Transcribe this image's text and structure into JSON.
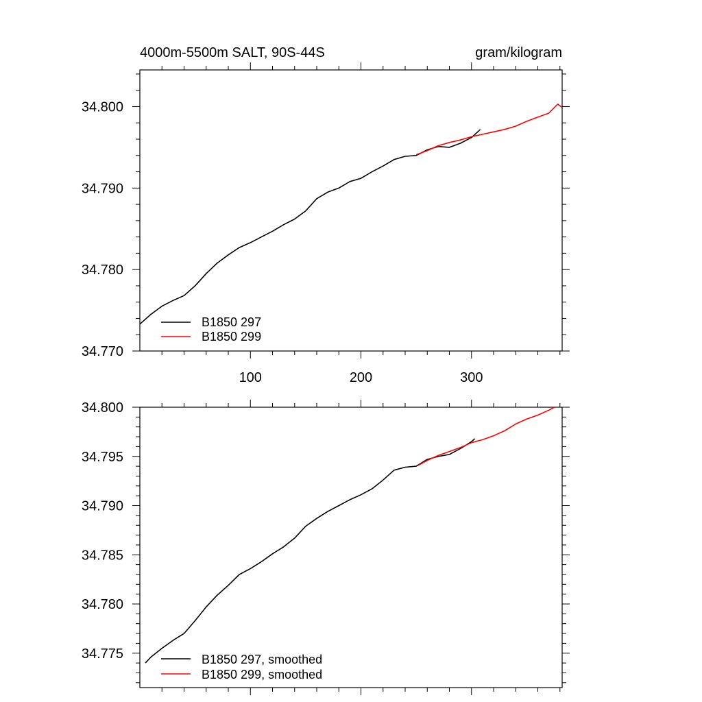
{
  "chart_data": [
    {
      "type": "line",
      "title": "4000m-5500m SALT, 90S-44S",
      "units": "gram/kilogram",
      "xlim": [
        0,
        382
      ],
      "ylim": [
        34.77,
        34.8045
      ],
      "x_ticks": [
        100,
        200,
        300
      ],
      "x_tick_labels": [
        "100",
        "200",
        "300"
      ],
      "y_ticks": [
        34.77,
        34.78,
        34.79,
        34.8
      ],
      "y_tick_labels": [
        "34.770",
        "34.780",
        "34.790",
        "34.800"
      ],
      "series": [
        {
          "name": "B1850 297",
          "color": "#000000",
          "x": [
            0,
            10,
            20,
            30,
            40,
            50,
            60,
            70,
            80,
            90,
            100,
            110,
            120,
            130,
            140,
            150,
            160,
            170,
            180,
            190,
            200,
            210,
            220,
            230,
            240,
            250,
            260,
            270,
            280,
            290,
            300,
            308
          ],
          "y": [
            34.7733,
            34.7745,
            34.7755,
            34.7762,
            34.7768,
            34.778,
            34.7795,
            34.7808,
            34.7818,
            34.7827,
            34.7833,
            34.784,
            34.7847,
            34.7855,
            34.7862,
            34.7872,
            34.7887,
            34.7895,
            34.79,
            34.7908,
            34.7912,
            34.792,
            34.7927,
            34.7935,
            34.7939,
            34.794,
            34.7947,
            34.7951,
            34.795,
            34.7955,
            34.7962,
            34.7972
          ]
        },
        {
          "name": "B1850 299",
          "color": "#ff0000",
          "x": [
            250,
            260,
            270,
            280,
            290,
            300,
            310,
            320,
            330,
            340,
            350,
            360,
            370,
            378,
            382
          ],
          "y": [
            34.7941,
            34.7946,
            34.7952,
            34.7956,
            34.7959,
            34.7963,
            34.7966,
            34.7969,
            34.7972,
            34.7976,
            34.7982,
            34.7987,
            34.7992,
            34.8003,
            34.7999
          ]
        }
      ],
      "legend": [
        "B1850 297",
        "B1850 299"
      ],
      "legend_position": "bottom-left"
    },
    {
      "type": "line",
      "title": "",
      "xlim": [
        0,
        382
      ],
      "ylim": [
        34.7715,
        34.8
      ],
      "x_ticks": [
        100,
        200,
        300
      ],
      "y_ticks": [
        34.775,
        34.78,
        34.785,
        34.79,
        34.795,
        34.8
      ],
      "y_tick_labels": [
        "34.775",
        "34.780",
        "34.785",
        "34.790",
        "34.795",
        "34.800"
      ],
      "series": [
        {
          "name": "B1850 297, smoothed",
          "color": "#000000",
          "x": [
            5,
            10,
            20,
            30,
            40,
            50,
            60,
            70,
            80,
            90,
            100,
            110,
            120,
            130,
            140,
            150,
            160,
            170,
            180,
            190,
            200,
            210,
            220,
            230,
            240,
            250,
            260,
            270,
            280,
            290,
            300,
            303
          ],
          "y": [
            34.774,
            34.7746,
            34.7755,
            34.7763,
            34.777,
            34.7783,
            34.7797,
            34.7809,
            34.7819,
            34.783,
            34.7836,
            34.7843,
            34.7851,
            34.7858,
            34.7867,
            34.7879,
            34.7887,
            34.7894,
            34.79,
            34.7906,
            34.7911,
            34.7917,
            34.7926,
            34.7936,
            34.7939,
            34.794,
            34.7947,
            34.795,
            34.7952,
            34.7958,
            34.7965,
            34.7968
          ]
        },
        {
          "name": "B1850 299, smoothed",
          "color": "#ff0000",
          "x": [
            252,
            260,
            270,
            280,
            290,
            300,
            310,
            320,
            330,
            340,
            350,
            360,
            370,
            375
          ],
          "y": [
            34.7941,
            34.7946,
            34.7951,
            34.7955,
            34.7959,
            34.7964,
            34.7967,
            34.7971,
            34.7976,
            34.7983,
            34.7988,
            34.7992,
            34.7997,
            34.8
          ]
        }
      ],
      "legend": [
        "B1850 297, smoothed",
        "B1850 299, smoothed"
      ],
      "legend_position": "bottom-left"
    }
  ]
}
